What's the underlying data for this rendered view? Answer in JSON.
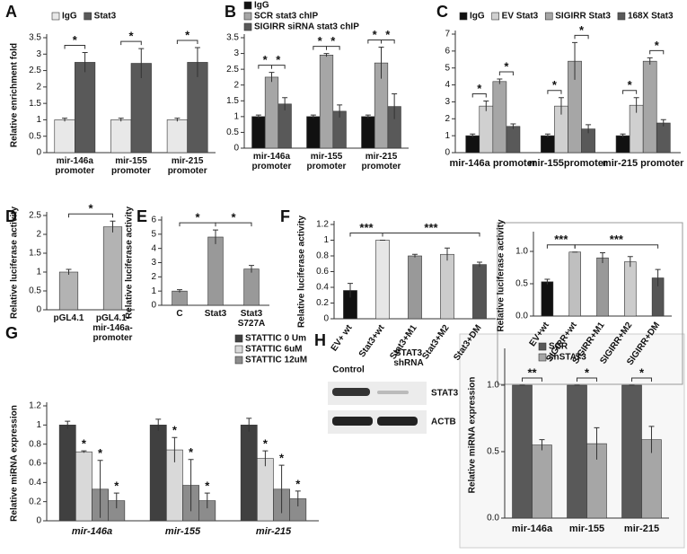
{
  "chart_data": [
    {
      "type": "bar",
      "panel": "A",
      "ylabel": "Relative enrichment fold",
      "categories": [
        "mir-146a promoter",
        "mir-155 promoter",
        "mir-215 promoter"
      ],
      "series": [
        {
          "name": "IgG",
          "color": "#e8e8e8",
          "values": [
            1,
            1,
            1
          ],
          "errors": [
            0.05,
            0.05,
            0.05
          ]
        },
        {
          "name": "Stat3",
          "color": "#595959",
          "values": [
            2.75,
            2.72,
            2.75
          ],
          "errors": [
            0.3,
            0.45,
            0.45
          ]
        }
      ],
      "ylim": [
        0,
        3.5
      ],
      "yticks": [
        0,
        0.5,
        1,
        1.5,
        2,
        2.5,
        3,
        3.5
      ],
      "annotations": [
        "*",
        "*",
        "*"
      ]
    },
    {
      "type": "bar",
      "panel": "B",
      "categories": [
        "mir-146a promoter",
        "mir-155 promoter",
        "mir-215 promoter"
      ],
      "series": [
        {
          "name": "IgG",
          "color": "#111111",
          "values": [
            1,
            1,
            1
          ],
          "errors": [
            0.05,
            0.05,
            0.05
          ]
        },
        {
          "name": "SCR stat3 chIP",
          "color": "#a6a6a6",
          "values": [
            2.25,
            2.95,
            2.7
          ],
          "errors": [
            0.15,
            0.05,
            0.5
          ]
        },
        {
          "name": "SIGIRR siRNA stat3 chIP",
          "color": "#595959",
          "values": [
            1.4,
            1.17,
            1.32
          ],
          "errors": [
            0.2,
            0.2,
            0.4
          ]
        }
      ],
      "ylim": [
        0,
        3.5
      ],
      "yticks": [
        0,
        0.5,
        1,
        1.5,
        2,
        2.5,
        3,
        3.5
      ],
      "annotations": [
        "*",
        "*",
        "*",
        "*",
        "*",
        "*"
      ]
    },
    {
      "type": "bar",
      "panel": "C",
      "categories": [
        "mir-146a promoter",
        "mir-155promoter",
        "mir-215 promoter"
      ],
      "series": [
        {
          "name": "IgG",
          "color": "#111111",
          "values": [
            1,
            1,
            1
          ],
          "errors": [
            0.1,
            0.1,
            0.1
          ]
        },
        {
          "name": "EV Stat3",
          "color": "#d0d0d0",
          "values": [
            2.75,
            2.75,
            2.8
          ],
          "errors": [
            0.3,
            0.5,
            0.45
          ]
        },
        {
          "name": "SIGIRR Stat3",
          "color": "#a6a6a6",
          "values": [
            4.2,
            5.4,
            5.4
          ],
          "errors": [
            0.15,
            1.1,
            0.2
          ]
        },
        {
          "name": "168X Stat3",
          "color": "#595959",
          "values": [
            1.55,
            1.4,
            1.75
          ],
          "errors": [
            0.15,
            0.25,
            0.2
          ]
        }
      ],
      "ylim": [
        0,
        7
      ],
      "yticks": [
        0,
        1,
        2,
        3,
        4,
        5,
        6,
        7
      ],
      "annotations": [
        "*",
        "*",
        "*",
        "*",
        "*",
        "*"
      ]
    },
    {
      "type": "bar",
      "panel": "D",
      "ylabel": "Relative luciferase activity",
      "categories": [
        "pGL4.1",
        "pGL4.1-mir-146a-promoter"
      ],
      "values": [
        1,
        2.2
      ],
      "errors": [
        0.07,
        0.15
      ],
      "color": "#b3b3b3",
      "ylim": [
        0,
        2.5
      ],
      "yticks": [
        0,
        0.5,
        1,
        1.5,
        2,
        2.5
      ],
      "annotations": [
        "*"
      ]
    },
    {
      "type": "bar",
      "panel": "E",
      "ylabel": "Relative luciferase activity",
      "categories": [
        "C",
        "Stat3",
        "Stat3 S727A"
      ],
      "values": [
        1,
        4.8,
        2.55
      ],
      "errors": [
        0.1,
        0.5,
        0.25
      ],
      "color": "#999999",
      "ylim": [
        0,
        6
      ],
      "yticks": [
        0,
        1,
        2,
        3,
        4,
        5,
        6
      ],
      "annotations": [
        "*",
        "*"
      ]
    },
    {
      "type": "bar",
      "panel": "F",
      "ylabel": "Relative luciferase activity",
      "categories": [
        "EV+ wt",
        "Stat3+wt",
        "Stat3+M1",
        "Stat3+M2",
        "Stat3+DM"
      ],
      "values": [
        0.36,
        1.0,
        0.8,
        0.82,
        0.69
      ],
      "errors": [
        0.09,
        0,
        0.02,
        0.08,
        0.03
      ],
      "colors": [
        "#111111",
        "#e6e6e6",
        "#999999",
        "#cccccc",
        "#555555"
      ],
      "ylim": [
        0,
        1.2
      ],
      "yticks": [
        0,
        0.2,
        0.4,
        0.6,
        0.8,
        1,
        1.2
      ],
      "annotations": [
        "***",
        "***"
      ]
    },
    {
      "type": "bar",
      "ylabel": "Relative luciferase activity",
      "categories": [
        "EV+wt",
        "SIGIRR+wt",
        "SIGIRR+M1",
        "SIGIRR+M2",
        "SIGIRR+DM"
      ],
      "values": [
        0.53,
        0.99,
        0.9,
        0.84,
        0.59
      ],
      "errors": [
        0.04,
        0,
        0.08,
        0.08,
        0.13
      ],
      "colors": [
        "#111111",
        "#bfbfbf",
        "#999999",
        "#cccccc",
        "#555555"
      ],
      "ylim": [
        0,
        1.25
      ],
      "yticks": [
        {
          "value": 0,
          "label": "0.0"
        },
        {
          "value": 0.5,
          "label": "0.5"
        },
        {
          "value": 1,
          "label": "1.0"
        }
      ],
      "annotations": [
        "***",
        "***"
      ]
    },
    {
      "type": "bar",
      "panel": "G",
      "ylabel": "Relative miRNA expression",
      "categories": [
        "mir-146a",
        "mir-155",
        "mir-215"
      ],
      "series": [
        {
          "name": "STATTIC 0 Um",
          "color": "#404040",
          "values": [
            1,
            1,
            1
          ],
          "errors": [
            0.04,
            0.06,
            0.07
          ]
        },
        {
          "name": "STATTIC 6uM",
          "color": "#d9d9d9",
          "values": [
            0.72,
            0.74,
            0.65
          ],
          "errors": [
            0.01,
            0.13,
            0.08
          ]
        },
        {
          "name": "STATTIC 12uM",
          "color": "#8c8c8c",
          "values": [
            0.33,
            0.37,
            0.33
          ],
          "errors": [
            0.3,
            0.27,
            0.25
          ]
        },
        {
          "color": "#8c8c8c",
          "values": [
            0.21,
            0.21,
            0.23
          ],
          "errors": [
            0.08,
            0.08,
            0.08
          ]
        }
      ],
      "ylim": [
        0,
        1.2
      ],
      "yticks": [
        0,
        0.2,
        0.4,
        0.6,
        0.8,
        1,
        1.2
      ],
      "annotations": [
        "*",
        "*",
        "*",
        "*",
        "*",
        "*",
        "*",
        "*",
        "*"
      ]
    },
    {
      "type": "bar",
      "ylabel": "Relative miRNA expression",
      "categories": [
        "mir-146a",
        "mir-155",
        "mir-215"
      ],
      "series": [
        {
          "name": "SCR",
          "color": "#595959",
          "values": [
            1,
            1,
            1
          ],
          "errors": [
            0,
            0,
            0
          ]
        },
        {
          "name": "shSTAT3",
          "color": "#a6a6a6",
          "values": [
            0.55,
            0.56,
            0.59
          ],
          "errors": [
            0.04,
            0.12,
            0.1
          ]
        }
      ],
      "ylim": [
        0,
        1.25
      ],
      "yticks": [
        {
          "value": 0,
          "label": "0.0"
        },
        {
          "value": 0.5,
          "label": "0.5"
        },
        {
          "value": 1,
          "label": "1.0"
        }
      ],
      "annotations": [
        "**",
        "*",
        "*"
      ]
    }
  ],
  "blot": {
    "panel": "H",
    "columns": [
      "Control",
      "STAT3 shRNA"
    ],
    "rows": [
      "STAT3",
      "ACTB"
    ]
  }
}
